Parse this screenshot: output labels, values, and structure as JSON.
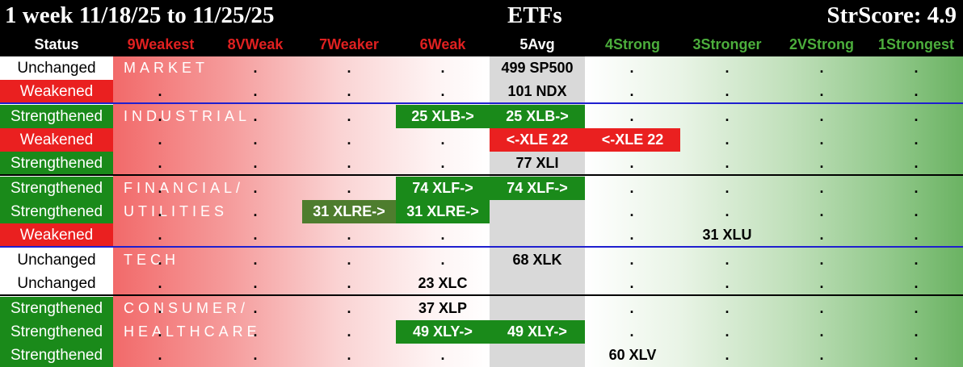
{
  "title": {
    "left": "1 week 11/18/25 to 11/25/25",
    "middle": "ETFs",
    "right": "StrScore: 4.9"
  },
  "header": {
    "status": "Status",
    "columns": [
      "9Weakest",
      "8VWeak",
      "7Weaker",
      "6Weak",
      "5Avg",
      "4Strong",
      "3Stronger",
      "2VStrong",
      "1Strongest"
    ]
  },
  "colors": {
    "weak_header": "#e02020",
    "avg_header": "#ffffff",
    "strong_header": "#4cae3c",
    "strengthened_bg": "#1a8a1a",
    "weakened_bg": "#ea2020",
    "separator_blue": "#1f1fcf"
  },
  "sections": {
    "market": "MARKET",
    "industrial": "INDUSTRIAL",
    "financial": "FINANCIAL/",
    "utilities": "UTILITIES",
    "tech": "TECH",
    "consumer": "CONSUMER/",
    "healthcare": "HEALTHCARE"
  },
  "rows": [
    {
      "status": "Unchanged",
      "type": "same",
      "tickers": [
        "499 SP500"
      ]
    },
    {
      "status": "Weakened",
      "type": "down",
      "tickers": [
        "101 NDX"
      ]
    },
    {
      "status": "Strengthened",
      "type": "up",
      "tickers": [
        "25 XLB->",
        "25 XLB->"
      ]
    },
    {
      "status": "Weakened",
      "type": "down",
      "tickers": [
        "<-XLE 22",
        "<-XLE 22"
      ]
    },
    {
      "status": "Strengthened",
      "type": "up",
      "tickers": [
        "77 XLI"
      ]
    },
    {
      "status": "Strengthened",
      "type": "up",
      "tickers": [
        "74 XLF->",
        "74 XLF->"
      ]
    },
    {
      "status": "Strengthened",
      "type": "up",
      "tickers": [
        "31 XLRE->",
        "31 XLRE->"
      ]
    },
    {
      "status": "Weakened",
      "type": "down",
      "tickers": [
        "31 XLU"
      ]
    },
    {
      "status": "Unchanged",
      "type": "same",
      "tickers": [
        "68 XLK"
      ]
    },
    {
      "status": "Unchanged",
      "type": "same",
      "tickers": [
        "23 XLC"
      ]
    },
    {
      "status": "Strengthened",
      "type": "up",
      "tickers": [
        "37 XLP"
      ]
    },
    {
      "status": "Strengthened",
      "type": "up",
      "tickers": [
        "49 XLY->",
        "49 XLY->"
      ]
    },
    {
      "status": "Strengthened",
      "type": "up",
      "tickers": [
        "60 XLV"
      ]
    }
  ],
  "dot": "."
}
